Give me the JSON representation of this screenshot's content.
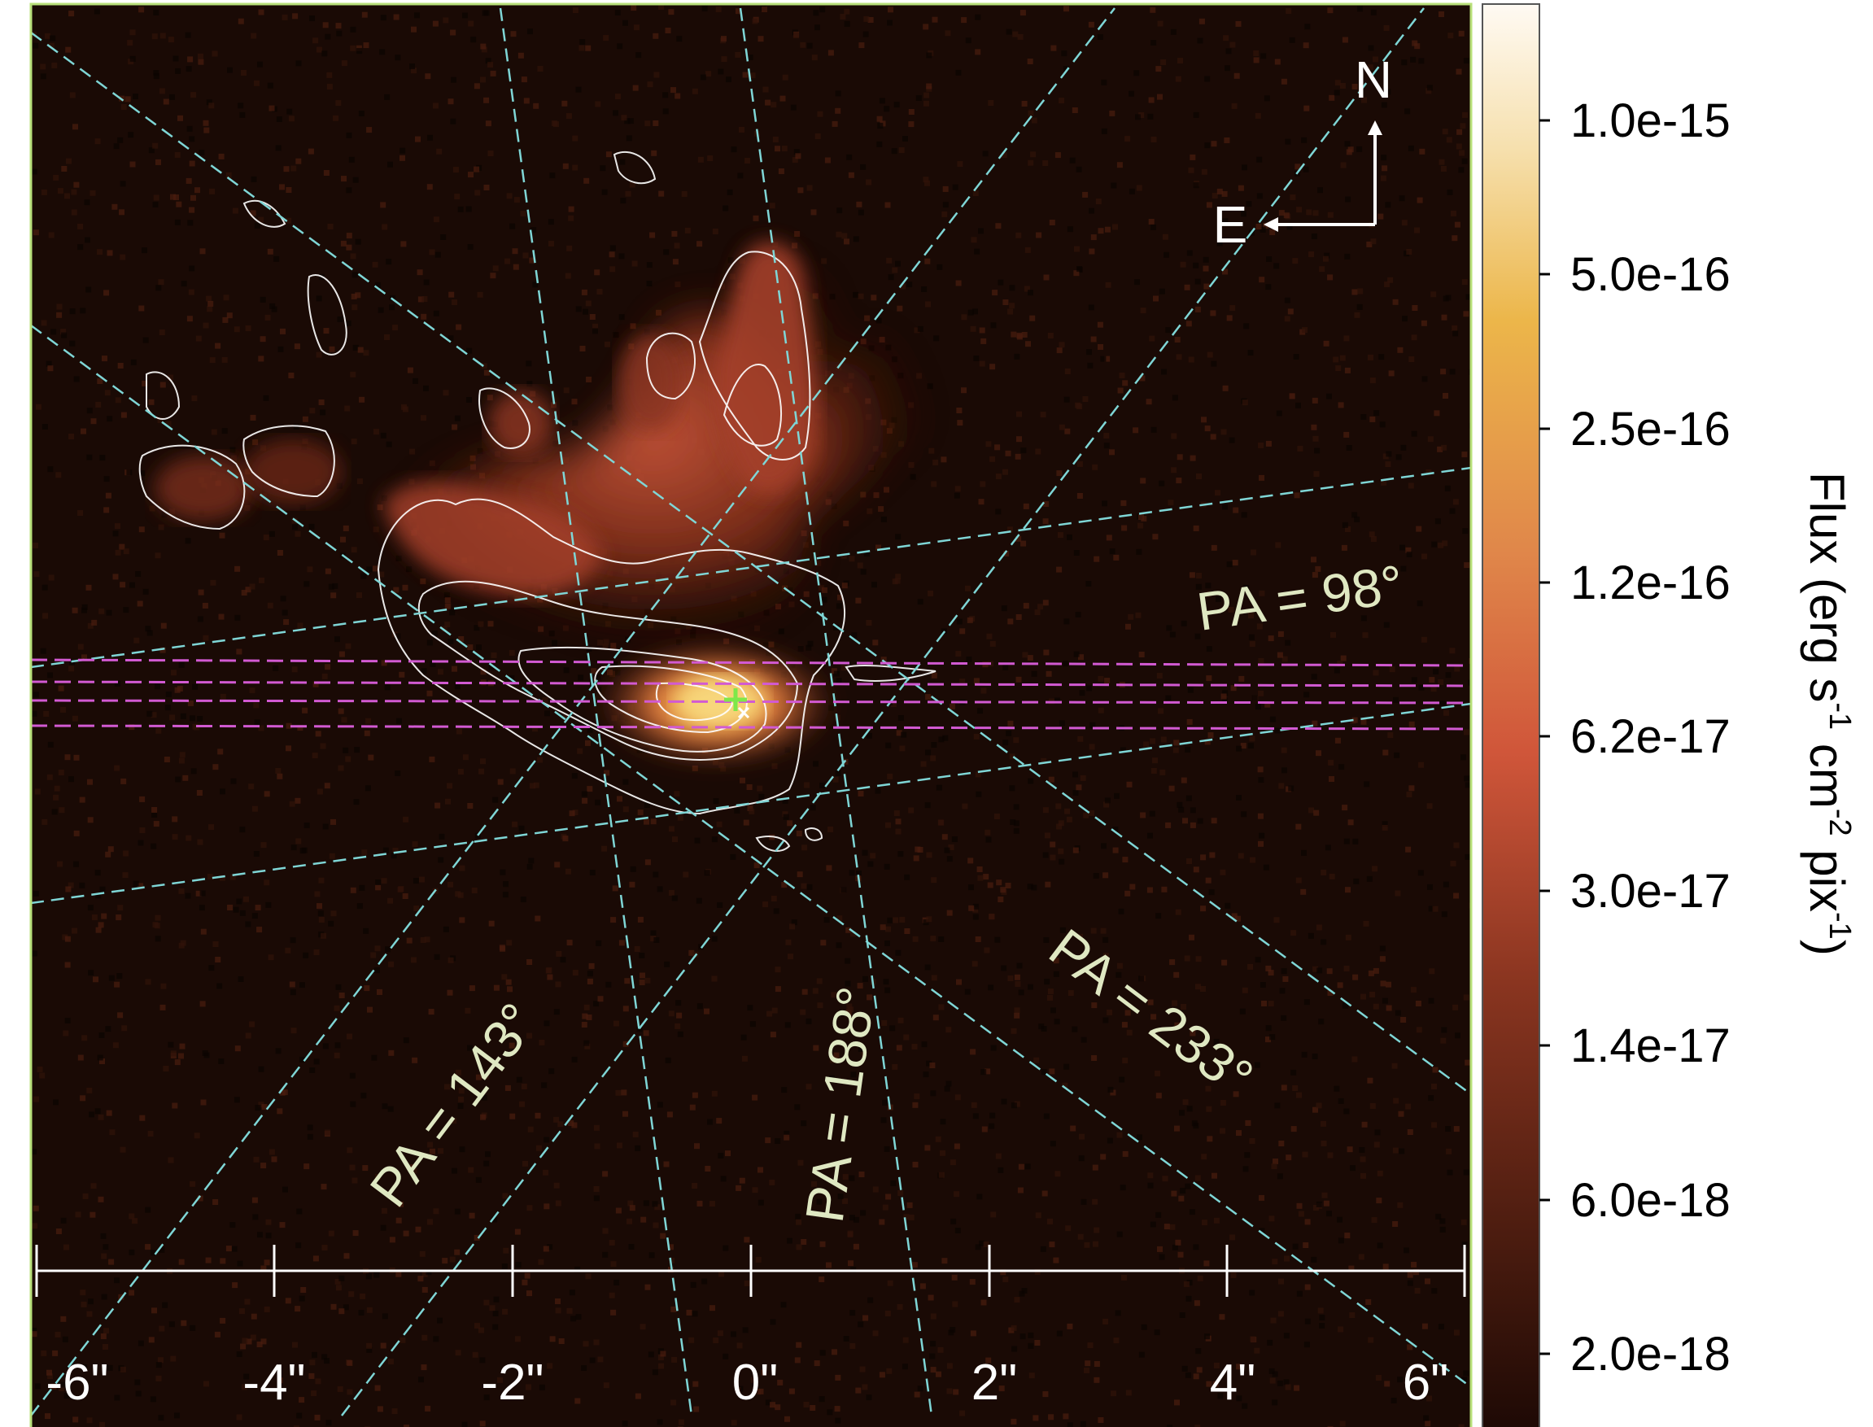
{
  "image": {
    "compass": {
      "north_label": "N",
      "east_label": "E"
    },
    "scale_bar": {
      "tick_labels": [
        "-6\"",
        "-4\"",
        "-2\"",
        "0\"",
        "2\"",
        "4\"",
        "6\""
      ]
    },
    "slit_labels": [
      {
        "text": "PA = 98°"
      },
      {
        "text": "PA = 143°"
      },
      {
        "text": "PA = 188°"
      },
      {
        "text": "PA = 233°"
      }
    ],
    "colorbar": {
      "label_prefix": "Flux (erg s",
      "label_sup1": "-1",
      "label_mid1": " cm",
      "label_sup2": "-2",
      "label_mid2": " pix",
      "label_sup3": "-1",
      "label_suffix": ")",
      "ticks": [
        "1.0e-15",
        "5.0e-16",
        "2.5e-16",
        "1.2e-16",
        "6.2e-17",
        "3.0e-17",
        "1.4e-17",
        "6.0e-18",
        "2.0e-18"
      ]
    },
    "colors": {
      "background": "#1a0a05",
      "frame": "#b8e07a",
      "slit_lines": "#7fd6d6",
      "magenta_lines": "#d25ad2",
      "contours": "#ffffff",
      "label_text": "#dfe8c2",
      "center_marker": "#7ee84a"
    }
  }
}
